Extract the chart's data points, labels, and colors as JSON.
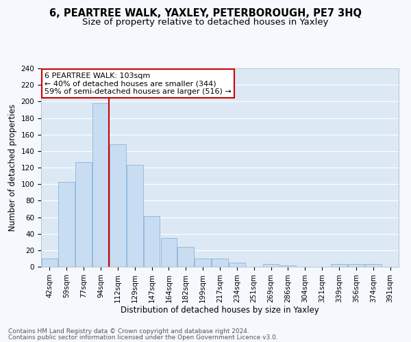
{
  "title": "6, PEARTREE WALK, YAXLEY, PETERBOROUGH, PE7 3HQ",
  "subtitle": "Size of property relative to detached houses in Yaxley",
  "xlabel": "Distribution of detached houses by size in Yaxley",
  "ylabel": "Number of detached properties",
  "footnote1": "Contains HM Land Registry data © Crown copyright and database right 2024.",
  "footnote2": "Contains public sector information licensed under the Open Government Licence v3.0.",
  "bar_labels": [
    "42sqm",
    "59sqm",
    "77sqm",
    "94sqm",
    "112sqm",
    "129sqm",
    "147sqm",
    "164sqm",
    "182sqm",
    "199sqm",
    "217sqm",
    "234sqm",
    "251sqm",
    "269sqm",
    "286sqm",
    "304sqm",
    "321sqm",
    "339sqm",
    "356sqm",
    "374sqm",
    "391sqm"
  ],
  "bar_values": [
    10,
    103,
    127,
    198,
    148,
    123,
    61,
    35,
    24,
    10,
    10,
    5,
    0,
    3,
    2,
    0,
    0,
    3,
    3,
    3,
    0
  ],
  "bar_color": "#c9ddf2",
  "bar_edge_color": "#8ab4d9",
  "vline_x_index": 3,
  "vline_color": "#cc0000",
  "annotation_line1": "6 PEARTREE WALK: 103sqm",
  "annotation_line2": "← 40% of detached houses are smaller (344)",
  "annotation_line3": "59% of semi-detached houses are larger (516) →",
  "annotation_box_facecolor": "#ffffff",
  "annotation_box_edgecolor": "#cc0000",
  "ylim_max": 240,
  "yticks": [
    0,
    20,
    40,
    60,
    80,
    100,
    120,
    140,
    160,
    180,
    200,
    220,
    240
  ],
  "plot_bg_color": "#dce9f5",
  "grid_color": "#ffffff",
  "fig_bg_color": "#f5f8fc",
  "title_fontsize": 10.5,
  "subtitle_fontsize": 9.5,
  "xlabel_fontsize": 8.5,
  "ylabel_fontsize": 8.5,
  "tick_fontsize": 7.5,
  "annot_fontsize": 8,
  "footnote_fontsize": 6.5
}
